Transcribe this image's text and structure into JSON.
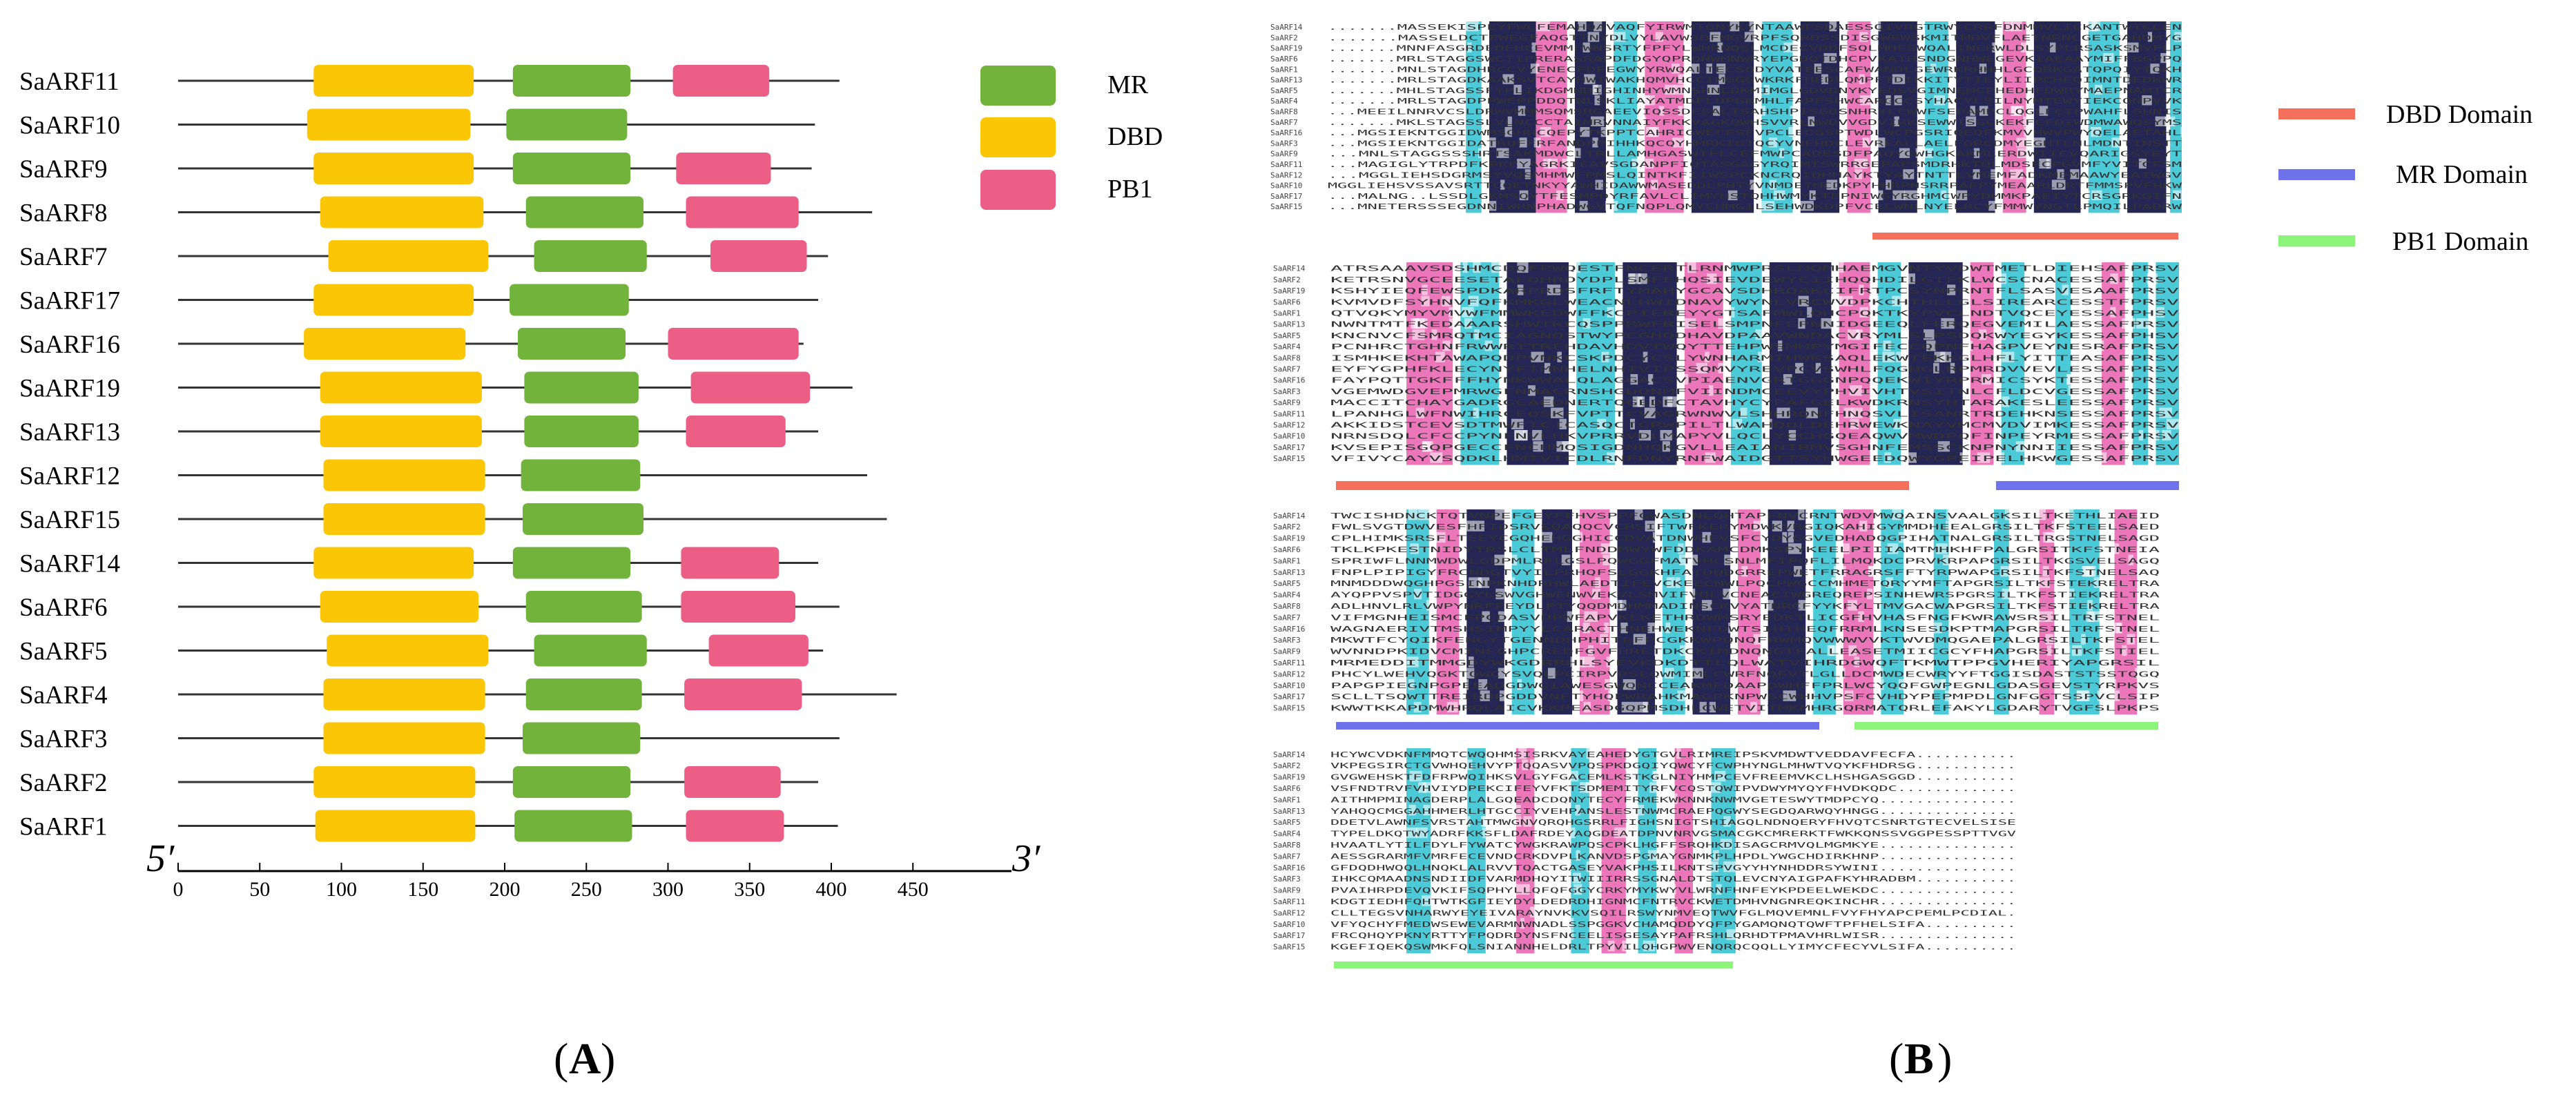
{
  "panel_a": {
    "label_open": "(",
    "label_letter": "A",
    "label_close": ")",
    "legend": [
      {
        "name": "MR",
        "color": "#72b33c"
      },
      {
        "name": "DBD",
        "color": "#fbc605"
      },
      {
        "name": "PB1",
        "color": "#ec5e86"
      }
    ],
    "end_5": "5′",
    "end_3": "3′",
    "axis_ticks": [
      0,
      50,
      100,
      150,
      200,
      250,
      300,
      350,
      400,
      450
    ],
    "proteins": [
      {
        "name": "SaARF11",
        "length": 405,
        "domains": [
          {
            "type": "DBD",
            "start": 83,
            "end": 181
          },
          {
            "type": "MR",
            "start": 205,
            "end": 277
          },
          {
            "type": "PB1",
            "start": 303,
            "end": 362
          }
        ]
      },
      {
        "name": "SaARF10",
        "length": 390,
        "domains": [
          {
            "type": "DBD",
            "start": 79,
            "end": 179
          },
          {
            "type": "MR",
            "start": 201,
            "end": 275
          }
        ]
      },
      {
        "name": "SaARF9",
        "length": 388,
        "domains": [
          {
            "type": "DBD",
            "start": 83,
            "end": 181
          },
          {
            "type": "MR",
            "start": 205,
            "end": 277
          },
          {
            "type": "PB1",
            "start": 305,
            "end": 363
          }
        ]
      },
      {
        "name": "SaARF8",
        "length": 425,
        "domains": [
          {
            "type": "DBD",
            "start": 87,
            "end": 187
          },
          {
            "type": "MR",
            "start": 213,
            "end": 285
          },
          {
            "type": "PB1",
            "start": 311,
            "end": 380
          }
        ]
      },
      {
        "name": "SaARF7",
        "length": 398,
        "domains": [
          {
            "type": "DBD",
            "start": 92,
            "end": 190
          },
          {
            "type": "MR",
            "start": 218,
            "end": 287
          },
          {
            "type": "PB1",
            "start": 326,
            "end": 385
          }
        ]
      },
      {
        "name": "SaARF17",
        "length": 392,
        "domains": [
          {
            "type": "DBD",
            "start": 83,
            "end": 181
          },
          {
            "type": "MR",
            "start": 203,
            "end": 276
          }
        ]
      },
      {
        "name": "SaARF16",
        "length": 383,
        "domains": [
          {
            "type": "DBD",
            "start": 77,
            "end": 176
          },
          {
            "type": "MR",
            "start": 208,
            "end": 274
          },
          {
            "type": "PB1",
            "start": 300,
            "end": 380
          }
        ]
      },
      {
        "name": "SaARF19",
        "length": 413,
        "domains": [
          {
            "type": "DBD",
            "start": 87,
            "end": 186
          },
          {
            "type": "MR",
            "start": 212,
            "end": 282
          },
          {
            "type": "PB1",
            "start": 314,
            "end": 387
          }
        ]
      },
      {
        "name": "SaARF13",
        "length": 392,
        "domains": [
          {
            "type": "DBD",
            "start": 87,
            "end": 186
          },
          {
            "type": "MR",
            "start": 212,
            "end": 282
          },
          {
            "type": "PB1",
            "start": 311,
            "end": 372
          }
        ]
      },
      {
        "name": "SaARF12",
        "length": 422,
        "domains": [
          {
            "type": "DBD",
            "start": 89,
            "end": 188
          },
          {
            "type": "MR",
            "start": 210,
            "end": 283
          }
        ]
      },
      {
        "name": "SaARF15",
        "length": 434,
        "domains": [
          {
            "type": "DBD",
            "start": 89,
            "end": 188
          },
          {
            "type": "MR",
            "start": 211,
            "end": 285
          }
        ]
      },
      {
        "name": "SaARF14",
        "length": 392,
        "domains": [
          {
            "type": "DBD",
            "start": 83,
            "end": 181
          },
          {
            "type": "MR",
            "start": 205,
            "end": 277
          },
          {
            "type": "PB1",
            "start": 308,
            "end": 368
          }
        ]
      },
      {
        "name": "SaARF6",
        "length": 405,
        "domains": [
          {
            "type": "DBD",
            "start": 87,
            "end": 184
          },
          {
            "type": "MR",
            "start": 213,
            "end": 284
          },
          {
            "type": "PB1",
            "start": 308,
            "end": 378
          }
        ]
      },
      {
        "name": "SaARF5",
        "length": 395,
        "domains": [
          {
            "type": "DBD",
            "start": 91,
            "end": 190
          },
          {
            "type": "MR",
            "start": 218,
            "end": 287
          },
          {
            "type": "PB1",
            "start": 325,
            "end": 386
          }
        ]
      },
      {
        "name": "SaARF4",
        "length": 440,
        "domains": [
          {
            "type": "DBD",
            "start": 89,
            "end": 188
          },
          {
            "type": "MR",
            "start": 213,
            "end": 284
          },
          {
            "type": "PB1",
            "start": 310,
            "end": 382
          }
        ]
      },
      {
        "name": "SaARF3",
        "length": 405,
        "domains": [
          {
            "type": "DBD",
            "start": 89,
            "end": 188
          },
          {
            "type": "MR",
            "start": 211,
            "end": 283
          }
        ]
      },
      {
        "name": "SaARF2",
        "length": 392,
        "domains": [
          {
            "type": "DBD",
            "start": 83,
            "end": 182
          },
          {
            "type": "MR",
            "start": 205,
            "end": 277
          },
          {
            "type": "PB1",
            "start": 310,
            "end": 369
          }
        ]
      },
      {
        "name": "SaARF1",
        "length": 404,
        "domains": [
          {
            "type": "DBD",
            "start": 84,
            "end": 182
          },
          {
            "type": "MR",
            "start": 206,
            "end": 278
          },
          {
            "type": "PB1",
            "start": 311,
            "end": 371
          }
        ]
      }
    ]
  },
  "panel_b": {
    "label_open": "(",
    "label_letter": "B",
    "label_close": ")",
    "legend": [
      {
        "name": "DBD Domain",
        "color": "#f4705c"
      },
      {
        "name": "MR Domain",
        "color": "#6e73ec"
      },
      {
        "name": "PB1 Domain",
        "color": "#8cf47a"
      }
    ],
    "block_labels": [
      "SaARF14",
      "SaARF2",
      "SaARF19",
      "SaARF6",
      "SaARF1",
      "SaARF13",
      "SaARF5",
      "SaARF4",
      "SaARF8",
      "SaARF7",
      "SaARF16",
      "SaARF3",
      "SaARF9",
      "SaARF11",
      "SaARF12",
      "SaARF10",
      "SaARF17",
      "SaARF15"
    ],
    "block1_prefixes": [
      ".......MASSEKI",
      ".......MASSEL",
      ".......MNNFASGR",
      ".......MRLSTAGG",
      ".......MNLSTAG",
      ".......MRLSTAG",
      ".......MHLSTAGS",
      ".......MRLSTAG",
      "...MEEILNNRVCSL",
      ".......MKLSTAGS",
      "...MGSIEKNTGGI",
      "...MGSIEKNTGGI",
      "...MNLSTAGG",
      "...MAGIGLYTRP",
      "...MGGLIEHS",
      "MGGLIEHSVSSAVSRT",
      "...MALNG..LSS",
      "...MNETERSSSEG"
    ],
    "block2_tails": [
      "EHSAFPRSV",
      "ESSAFPRSV",
      "ESAAFPRSV",
      "ESSTFPRSV",
      "ESSAFPHSV",
      "ESSAFPRSV",
      "ESSAFPHSV",
      "ESRAFPRSV",
      "EASAFPRSV",
      "ESSAFPRSV",
      "ESSAFPRSV",
      "ESSAFPRSV",
      "ESSAFPRSV",
      "ESSAFPRSV",
      "ESSAFPRSV",
      "ESSAFPRSV",
      "ESSAFPRSV",
      "ESSAFPRSV"
    ],
    "block3_tails": [
      "ALGKSILTKETHLIAEID",
      "ALGRSILTKFSTEELSAED",
      "ALGRSILTRGSTNELSAGD",
      "ALGRSITKFSTNEIA",
      "APGRSILTKGSVELSAGQ",
      "APGRSILTKFSTNELSAQ",
      "APGRSILTKFSTEKRELTRA",
      "SPGRSILTKFSTIEKRELTRA",
      "APGRSILTKFSTIEKRELTRA",
      "AWSRSILTRFSTNEL",
      "APGRSILTRFSTNEL",
      "ALGRSILTKFSTEL",
      "APGRSILTKFSTIEL",
      "APGRSIL",
      "FTGGISDASTSTSSTQGQ",
      "LGDASGEVSTYRPKVS",
      "LGNFGGTSSPVCLSIP",
      "LGDARYTVGFSLPKPS"
    ],
    "block4_tails": [
      "ECFA...........",
      "DRSG...........",
      "SGGD...........",
      "DC.............",
      "...............",
      "...............",
      "CSNRTGTECVELSISE",
      "NSSVGGPESSPTTVGV",
      "...............",
      "...............",
      "...............",
      "ADBM...........",
      "...............",
      "...............",
      "APCPEMLPCDIAL.",
      "LSIFA..........",
      "...............",
      "LSIFA.........."
    ]
  }
}
